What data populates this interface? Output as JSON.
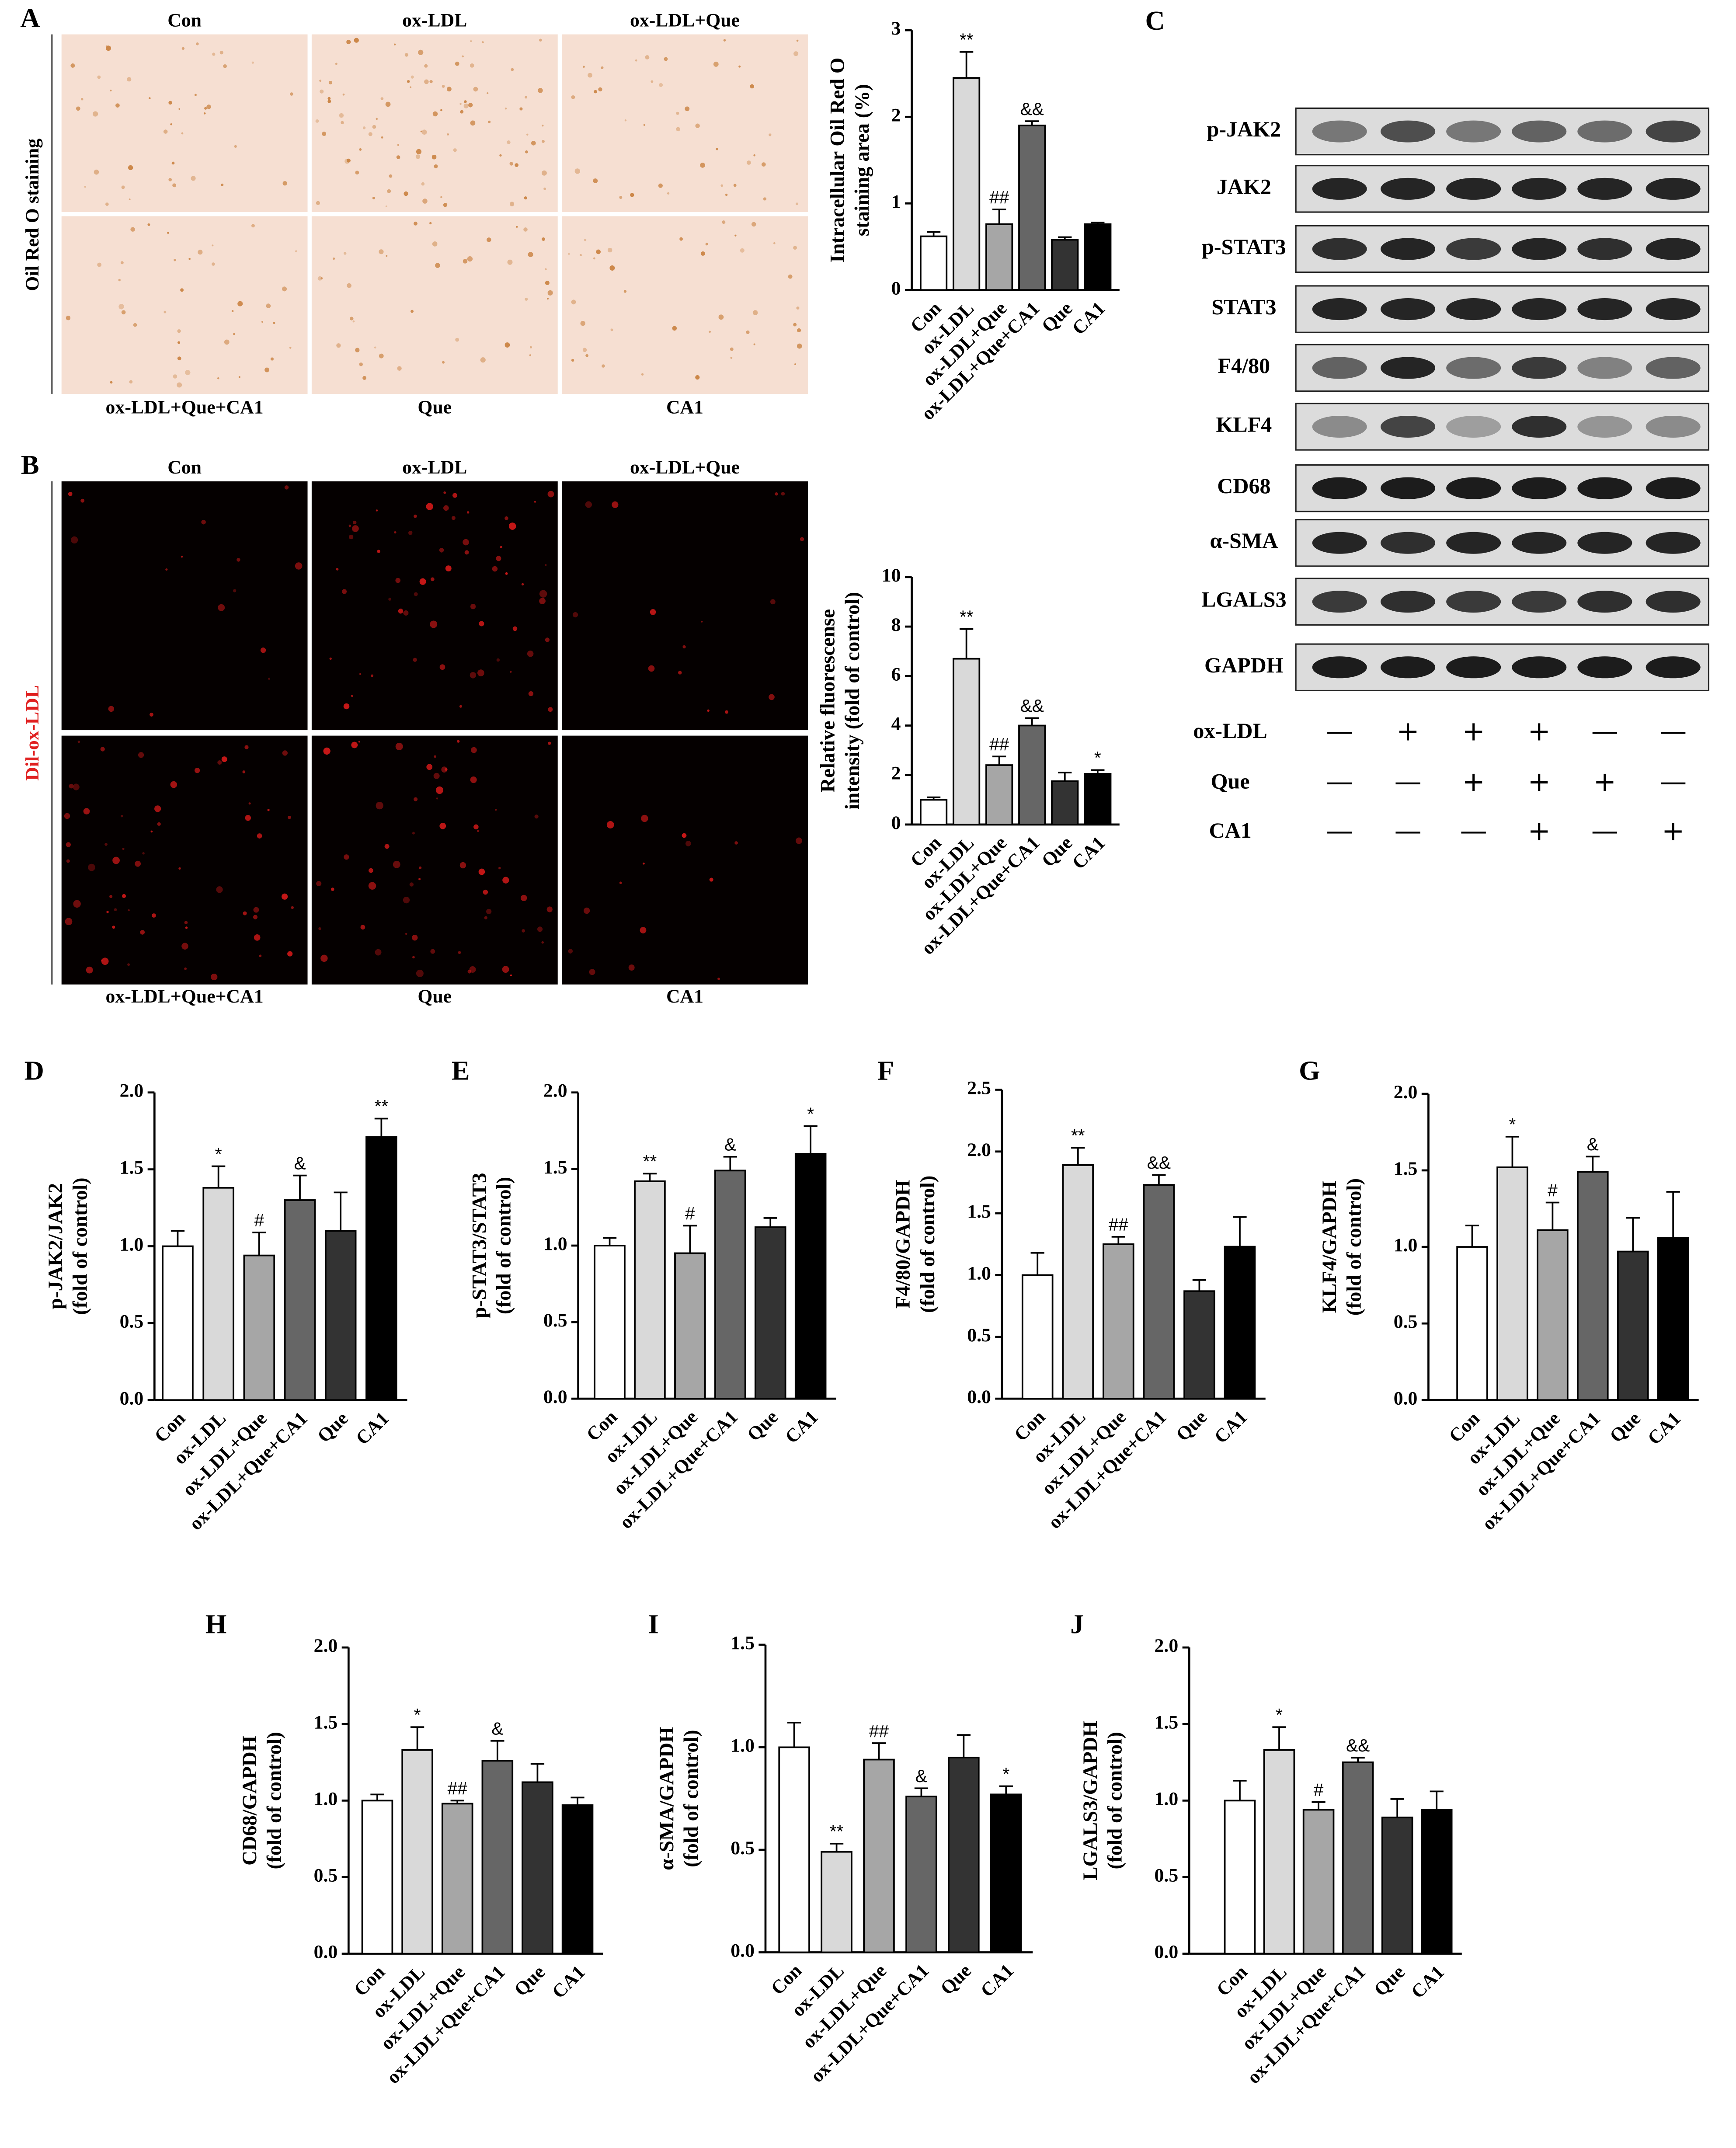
{
  "image_panels": [
    {
      "panel": "A",
      "side_label": "Oil Red O staining",
      "top_labels": [
        "Con",
        "ox-LDL",
        "ox-LDL+Que"
      ],
      "bottom_labels": [
        "ox-LDL+Que+CA1",
        "Que",
        "CA1"
      ]
    },
    {
      "panel": "B",
      "side_label": "Dil-ox-LDL",
      "top_labels": [
        "Con",
        "ox-LDL",
        "ox-LDL+Que"
      ],
      "bottom_labels": [
        "ox-LDL+Que+CA1",
        "Que",
        "CA1"
      ]
    }
  ],
  "blot": {
    "panel": "C",
    "proteins": [
      "p-JAK2",
      "JAK2",
      "p-STAT3",
      "STAT3",
      "F4/80",
      "KLF4",
      "CD68",
      "α-SMA",
      "LGALS3",
      "GAPDH"
    ],
    "treatments": [
      {
        "name": "ox-LDL",
        "signs": [
          "—",
          "+",
          "+",
          "+",
          "—",
          "—"
        ]
      },
      {
        "name": "Que",
        "signs": [
          "—",
          "—",
          "+",
          "+",
          "+",
          "—"
        ]
      },
      {
        "name": "CA1",
        "signs": [
          "—",
          "—",
          "—",
          "+",
          "—",
          "+"
        ]
      }
    ]
  },
  "chart_data": [
    {
      "type": "bar",
      "ylabel": [
        "Intracellular Oil Red O",
        "staining area (%)"
      ],
      "categories": [
        "Con",
        "ox-LDL",
        "ox-LDL+Que",
        "ox-LDL+Que+CA1",
        "Que",
        "CA1"
      ],
      "values": [
        0.62,
        2.45,
        0.76,
        1.9,
        0.58,
        0.76
      ],
      "errors": [
        0.05,
        0.3,
        0.17,
        0.05,
        0.03,
        0.02
      ],
      "annotations": [
        null,
        "**",
        "##",
        "&&",
        null,
        null
      ],
      "colors": [
        "#ffffff",
        "#d9d9d9",
        "#a6a6a6",
        "#666666",
        "#333333",
        "#000000"
      ],
      "ylim": [
        0,
        3
      ],
      "yticks": [
        0,
        1,
        2,
        3
      ]
    },
    {
      "type": "bar",
      "ylabel": [
        "Relative fluorescense",
        "intensity (fold of control)"
      ],
      "categories": [
        "Con",
        "ox-LDL",
        "ox-LDL+Que",
        "ox-LDL+Que+CA1",
        "Que",
        "CA1"
      ],
      "values": [
        1.0,
        6.7,
        2.4,
        4.0,
        1.75,
        2.05
      ],
      "errors": [
        0.1,
        1.2,
        0.35,
        0.3,
        0.35,
        0.15
      ],
      "annotations": [
        null,
        "**",
        "##",
        "&&",
        null,
        "*"
      ],
      "colors": [
        "#ffffff",
        "#d9d9d9",
        "#a6a6a6",
        "#666666",
        "#333333",
        "#000000"
      ],
      "ylim": [
        0,
        10
      ],
      "yticks": [
        0,
        2,
        4,
        6,
        8,
        10
      ]
    },
    {
      "type": "bar",
      "panel": "D",
      "ylabel": [
        "p-JAK2/JAK2",
        "(fold of control)"
      ],
      "categories": [
        "Con",
        "ox-LDL",
        "ox-LDL+Que",
        "ox-LDL+Que+CA1",
        "Que",
        "CA1"
      ],
      "values": [
        1.0,
        1.38,
        0.94,
        1.3,
        1.1,
        1.71
      ],
      "errors": [
        0.1,
        0.14,
        0.15,
        0.16,
        0.25,
        0.12
      ],
      "annotations": [
        null,
        "*",
        "#",
        "&",
        null,
        "**"
      ],
      "colors": [
        "#ffffff",
        "#d9d9d9",
        "#a6a6a6",
        "#666666",
        "#333333",
        "#000000"
      ],
      "ylim": [
        0,
        2
      ],
      "yticks": [
        {
          "value": 0,
          "label": "0.0"
        },
        0.5,
        {
          "value": 1,
          "label": "1.0"
        },
        1.5,
        {
          "value": 2,
          "label": "2.0"
        }
      ]
    },
    {
      "type": "bar",
      "panel": "E",
      "ylabel": [
        "p-STAT3/STAT3",
        "(fold of control)"
      ],
      "categories": [
        "Con",
        "ox-LDL",
        "ox-LDL+Que",
        "ox-LDL+Que+CA1",
        "Que",
        "CA1"
      ],
      "values": [
        1.0,
        1.42,
        0.95,
        1.49,
        1.12,
        1.6
      ],
      "errors": [
        0.05,
        0.05,
        0.18,
        0.09,
        0.06,
        0.18
      ],
      "annotations": [
        null,
        "**",
        "#",
        "&",
        null,
        "*"
      ],
      "colors": [
        "#ffffff",
        "#d9d9d9",
        "#a6a6a6",
        "#666666",
        "#333333",
        "#000000"
      ],
      "ylim": [
        0,
        2
      ],
      "yticks": [
        {
          "value": 0,
          "label": "0.0"
        },
        0.5,
        {
          "value": 1,
          "label": "1.0"
        },
        1.5,
        {
          "value": 2,
          "label": "2.0"
        }
      ]
    },
    {
      "type": "bar",
      "panel": "F",
      "ylabel": [
        "F4/80/GAPDH",
        "(fold of control)"
      ],
      "categories": [
        "Con",
        "ox-LDL",
        "ox-LDL+Que",
        "ox-LDL+Que+CA1",
        "Que",
        "CA1"
      ],
      "values": [
        1.0,
        1.89,
        1.25,
        1.73,
        0.87,
        1.23
      ],
      "errors": [
        0.18,
        0.14,
        0.06,
        0.08,
        0.09,
        0.24
      ],
      "annotations": [
        null,
        "**",
        "##",
        "&&",
        null,
        null
      ],
      "colors": [
        "#ffffff",
        "#d9d9d9",
        "#a6a6a6",
        "#666666",
        "#333333",
        "#000000"
      ],
      "ylim": [
        0,
        2.5
      ],
      "yticks": [
        {
          "value": 0,
          "label": "0.0"
        },
        0.5,
        {
          "value": 1,
          "label": "1.0"
        },
        1.5,
        {
          "value": 2,
          "label": "2.0"
        },
        2.5
      ]
    },
    {
      "type": "bar",
      "panel": "G",
      "ylabel": [
        "KLF4/GAPDH",
        "(fold of control)"
      ],
      "categories": [
        "Con",
        "ox-LDL",
        "ox-LDL+Que",
        "ox-LDL+Que+CA1",
        "Que",
        "CA1"
      ],
      "values": [
        1.0,
        1.52,
        1.11,
        1.49,
        0.97,
        1.06
      ],
      "errors": [
        0.14,
        0.2,
        0.18,
        0.1,
        0.22,
        0.3
      ],
      "annotations": [
        null,
        "*",
        "#",
        "&",
        null,
        null
      ],
      "colors": [
        "#ffffff",
        "#d9d9d9",
        "#a6a6a6",
        "#666666",
        "#333333",
        "#000000"
      ],
      "ylim": [
        0,
        2
      ],
      "yticks": [
        {
          "value": 0,
          "label": "0.0"
        },
        0.5,
        {
          "value": 1,
          "label": "1.0"
        },
        1.5,
        {
          "value": 2,
          "label": "2.0"
        }
      ]
    },
    {
      "type": "bar",
      "panel": "H",
      "ylabel": [
        "CD68/GAPDH",
        "(fold of control)"
      ],
      "categories": [
        "Con",
        "ox-LDL",
        "ox-LDL+Que",
        "ox-LDL+Que+CA1",
        "Que",
        "CA1"
      ],
      "values": [
        1.0,
        1.33,
        0.98,
        1.26,
        1.12,
        0.97
      ],
      "errors": [
        0.04,
        0.15,
        0.02,
        0.13,
        0.12,
        0.05
      ],
      "annotations": [
        null,
        "*",
        "##",
        "&",
        null,
        null
      ],
      "colors": [
        "#ffffff",
        "#d9d9d9",
        "#a6a6a6",
        "#666666",
        "#333333",
        "#000000"
      ],
      "ylim": [
        0,
        2
      ],
      "yticks": [
        {
          "value": 0,
          "label": "0.0"
        },
        0.5,
        {
          "value": 1,
          "label": "1.0"
        },
        1.5,
        {
          "value": 2,
          "label": "2.0"
        }
      ]
    },
    {
      "type": "bar",
      "panel": "I",
      "ylabel": [
        "α-SMA/GAPDH",
        "(fold of control)"
      ],
      "categories": [
        "Con",
        "ox-LDL",
        "ox-LDL+Que",
        "ox-LDL+Que+CA1",
        "Que",
        "CA1"
      ],
      "values": [
        1.0,
        0.49,
        0.94,
        0.76,
        0.95,
        0.77
      ],
      "errors": [
        0.12,
        0.04,
        0.08,
        0.04,
        0.11,
        0.04
      ],
      "annotations": [
        null,
        "**",
        "##",
        "&",
        null,
        "*"
      ],
      "colors": [
        "#ffffff",
        "#d9d9d9",
        "#a6a6a6",
        "#666666",
        "#333333",
        "#000000"
      ],
      "ylim": [
        0,
        1.5
      ],
      "yticks": [
        {
          "value": 0,
          "label": "0.0"
        },
        0.5,
        {
          "value": 1,
          "label": "1.0"
        },
        1.5
      ]
    },
    {
      "type": "bar",
      "panel": "J",
      "ylabel": [
        "LGALS3/GAPDH",
        "(fold of control)"
      ],
      "categories": [
        "Con",
        "ox-LDL",
        "ox-LDL+Que",
        "ox-LDL+Que+CA1",
        "Que",
        "CA1"
      ],
      "values": [
        1.0,
        1.33,
        0.94,
        1.25,
        0.89,
        0.94
      ],
      "errors": [
        0.13,
        0.15,
        0.05,
        0.03,
        0.12,
        0.12
      ],
      "annotations": [
        null,
        "*",
        "#",
        "&&",
        null,
        null
      ],
      "colors": [
        "#ffffff",
        "#d9d9d9",
        "#a6a6a6",
        "#666666",
        "#333333",
        "#000000"
      ],
      "ylim": [
        0,
        2
      ],
      "yticks": [
        {
          "value": 0,
          "label": "0.0"
        },
        0.5,
        {
          "value": 1,
          "label": "1.0"
        },
        1.5,
        {
          "value": 2,
          "label": "2.0"
        }
      ]
    }
  ]
}
